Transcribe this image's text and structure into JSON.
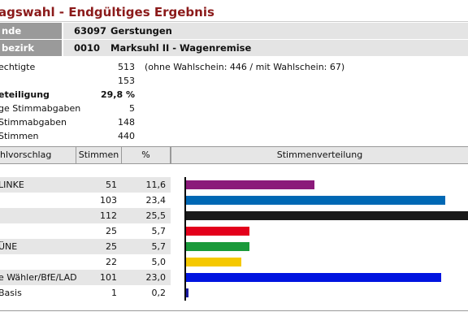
{
  "title": "agswahl - Endgültiges Ergebnis",
  "geo": [
    {
      "label": "nde",
      "code": "63097",
      "name": "Gerstungen"
    },
    {
      "label": "bezirk",
      "code": "0010",
      "name": "Marksuhl II - Wagenremise"
    }
  ],
  "stats": [
    {
      "label": "echtigte",
      "value": "513",
      "note": "(ohne Wahlschein: 446 / mit Wahlschein: 67)",
      "bold": false
    },
    {
      "label": "",
      "value": "153",
      "note": "",
      "bold": false
    },
    {
      "label": "eteiligung",
      "value": "29,8 %",
      "note": "",
      "bold": true
    },
    {
      "label": "ge Stimmabgaben",
      "value": "5",
      "note": "",
      "bold": false
    },
    {
      "label": "Stimmabgaben",
      "value": "148",
      "note": "",
      "bold": false
    },
    {
      "label": "Stimmen",
      "value": "440",
      "note": "",
      "bold": false
    }
  ],
  "table": {
    "headers": [
      "hlvorschlag",
      "Stimmen",
      "%",
      "Stimmenverteilung"
    ],
    "rows": [
      {
        "name": "LINKE",
        "votes": "51",
        "pct": "11,6",
        "share": 11.6,
        "color": "#8b1a7a"
      },
      {
        "name": "",
        "votes": "103",
        "pct": "23,4",
        "share": 23.4,
        "color": "#0068b4"
      },
      {
        "name": "",
        "votes": "112",
        "pct": "25,5",
        "share": 25.5,
        "color": "#1a1a1a"
      },
      {
        "name": "",
        "votes": "25",
        "pct": "5,7",
        "share": 5.7,
        "color": "#e3001b"
      },
      {
        "name": "ÜNE",
        "votes": "25",
        "pct": "5,7",
        "share": 5.7,
        "color": "#1a9a3a"
      },
      {
        "name": "",
        "votes": "22",
        "pct": "5,0",
        "share": 5.0,
        "color": "#f5c800"
      },
      {
        "name": "e Wähler/BfE/LAD",
        "votes": "101",
        "pct": "23,0",
        "share": 23.0,
        "color": "#0014e0"
      },
      {
        "name": "Basis",
        "votes": "1",
        "pct": "0,2",
        "share": 0.2,
        "color": "#1a1aa0"
      }
    ]
  }
}
